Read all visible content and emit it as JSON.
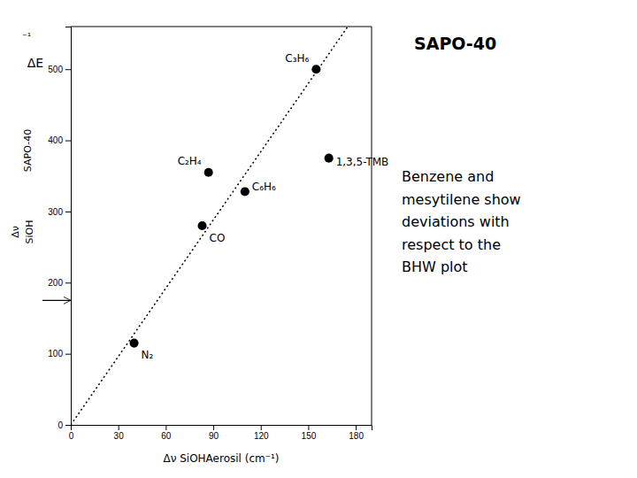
{
  "chart_data": {
    "type": "scatter",
    "title": "SAPO-40",
    "x_label": "Δν SiOHAerosil (cm⁻¹)",
    "y_label": [
      "⁻¹",
      "ΔE",
      "SAPO-40",
      "SiOH",
      "Δν"
    ],
    "x": [
      40,
      83,
      87,
      110,
      155,
      163
    ],
    "values": [
      115,
      280,
      355,
      328,
      500,
      375
    ],
    "labels": [
      "N₂",
      "CO",
      "C₂H₄",
      "C₆H₆",
      "C₃H₆",
      "1,3,5-TMB"
    ],
    "color": "black",
    "marker": "circle",
    "line": {
      "x": [
        0,
        175
      ],
      "y": [
        0,
        560
      ],
      "color": "black",
      "line_style": "dotted"
    },
    "arrow": {
      "y": 175
    },
    "annotation": "Benzene and\nmesytilene show\ndeviations with\nrespect to the\nBHW plot",
    "xlim": [
      0,
      190
    ],
    "ylim": [
      0,
      560
    ],
    "xticks": [
      0,
      30,
      60,
      90,
      120,
      150,
      180
    ],
    "yticks": [
      0,
      100,
      200,
      300,
      400,
      500
    ],
    "grid": false
  }
}
